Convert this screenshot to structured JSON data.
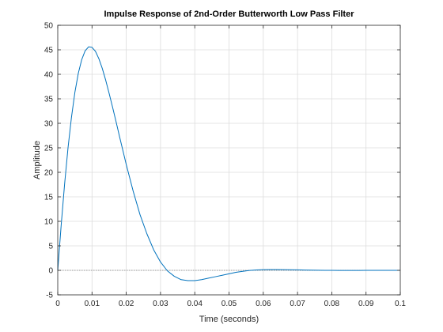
{
  "chart_data": {
    "type": "line",
    "title": "Impulse Response of 2nd-Order Butterworth Low Pass Filter",
    "xlabel": "Time (seconds)",
    "ylabel": "Amplitude",
    "xlim": [
      0,
      0.1
    ],
    "ylim": [
      -5,
      50
    ],
    "xticks": [
      0,
      0.01,
      0.02,
      0.03,
      0.04,
      0.05,
      0.06,
      0.07,
      0.08,
      0.09,
      0.1
    ],
    "xtick_labels": [
      "0",
      "0.01",
      "0.02",
      "0.03",
      "0.04",
      "0.05",
      "0.06",
      "0.07",
      "0.08",
      "0.09",
      "0.1"
    ],
    "yticks": [
      -5,
      0,
      5,
      10,
      15,
      20,
      25,
      30,
      35,
      40,
      45,
      50
    ],
    "ytick_labels": [
      "-5",
      "0",
      "5",
      "10",
      "15",
      "20",
      "25",
      "30",
      "35",
      "40",
      "45",
      "50"
    ],
    "grid": true,
    "zero_line": true,
    "series": [
      {
        "color": "#0072bd",
        "x": [
          0,
          0.001,
          0.002,
          0.003,
          0.004,
          0.005,
          0.006,
          0.007,
          0.008,
          0.009,
          0.01,
          0.011,
          0.012,
          0.013,
          0.014,
          0.015,
          0.016,
          0.017,
          0.018,
          0.019,
          0.02,
          0.022,
          0.024,
          0.026,
          0.028,
          0.03,
          0.032,
          0.034,
          0.036,
          0.038,
          0.04,
          0.042,
          0.044,
          0.046,
          0.048,
          0.05,
          0.052,
          0.054,
          0.056,
          0.058,
          0.06,
          0.062,
          0.064,
          0.066,
          0.068,
          0.07,
          0.072,
          0.074,
          0.076,
          0.078,
          0.08,
          0.082,
          0.084,
          0.086,
          0.088,
          0.09,
          0.092,
          0.094,
          0.096,
          0.098,
          0.1
        ],
        "y": [
          0,
          9.2,
          17.6,
          25.0,
          31.2,
          36.3,
          40.2,
          43.0,
          44.8,
          45.6,
          45.5,
          44.7,
          43.2,
          41.2,
          38.8,
          36.1,
          33.3,
          30.4,
          27.4,
          24.5,
          21.6,
          16.2,
          11.4,
          7.5,
          4.2,
          1.7,
          -0.1,
          -1.2,
          -1.9,
          -2.1,
          -2.1,
          -1.9,
          -1.6,
          -1.3,
          -1.0,
          -0.7,
          -0.4,
          -0.2,
          -0.02,
          0.08,
          0.14,
          0.16,
          0.16,
          0.15,
          0.13,
          0.1,
          0.07,
          0.04,
          0.02,
          0.0,
          -0.01,
          -0.02,
          -0.02,
          -0.02,
          -0.015,
          -0.01,
          -0.005,
          0,
          0,
          0,
          0
        ]
      }
    ]
  }
}
